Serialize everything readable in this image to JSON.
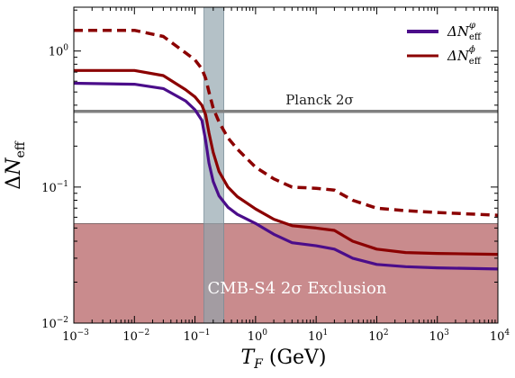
{
  "chart_data": {
    "type": "line",
    "xscale": "log",
    "yscale": "log",
    "xlim": [
      0.001,
      10000
    ],
    "ylim": [
      0.01,
      2.1
    ],
    "xlabel": {
      "main": "T",
      "sub": "F",
      "unit": " (GeV)"
    },
    "ylabel": {
      "prefix": "Δ",
      "main": "N",
      "sub": "eff"
    },
    "x_ticks": [
      {
        "value": 0.001,
        "base": "10",
        "exp": "−3"
      },
      {
        "value": 0.01,
        "base": "10",
        "exp": "−2"
      },
      {
        "value": 0.1,
        "base": "10",
        "exp": "−1"
      },
      {
        "value": 1,
        "base": "10",
        "exp": "0"
      },
      {
        "value": 10,
        "base": "10",
        "exp": "1"
      },
      {
        "value": 100,
        "base": "10",
        "exp": "2"
      },
      {
        "value": 1000,
        "base": "10",
        "exp": "3"
      },
      {
        "value": 10000,
        "base": "10",
        "exp": "4"
      }
    ],
    "y_ticks": [
      {
        "value": 0.01,
        "base": "10",
        "exp": "−2"
      },
      {
        "value": 0.1,
        "base": "10",
        "exp": "−1"
      },
      {
        "value": 1,
        "base": "10",
        "exp": "0"
      }
    ],
    "series": [
      {
        "name": "ΔN_eff^φ (purple)",
        "legend": {
          "main": "ΔN",
          "sub": "eff",
          "sup": "φ"
        },
        "color": "#4b0d8a",
        "dash": "solid",
        "points": [
          [
            0.001,
            0.58
          ],
          [
            0.01,
            0.57
          ],
          [
            0.03,
            0.53
          ],
          [
            0.07,
            0.43
          ],
          [
            0.1,
            0.37
          ],
          [
            0.13,
            0.31
          ],
          [
            0.15,
            0.22
          ],
          [
            0.17,
            0.15
          ],
          [
            0.2,
            0.11
          ],
          [
            0.25,
            0.086
          ],
          [
            0.35,
            0.071
          ],
          [
            0.5,
            0.063
          ],
          [
            1,
            0.054
          ],
          [
            2,
            0.045
          ],
          [
            4,
            0.039
          ],
          [
            10,
            0.037
          ],
          [
            20,
            0.035
          ],
          [
            40,
            0.03
          ],
          [
            100,
            0.027
          ],
          [
            300,
            0.026
          ],
          [
            1000,
            0.0255
          ],
          [
            10000,
            0.025
          ]
        ]
      },
      {
        "name": "ΔN_eff^ϕ (red solid)",
        "legend": {
          "main": "ΔN",
          "sub": "eff",
          "sup": "ϕ"
        },
        "color": "#8b0000",
        "dash": "solid",
        "points": [
          [
            0.001,
            0.72
          ],
          [
            0.01,
            0.72
          ],
          [
            0.03,
            0.66
          ],
          [
            0.07,
            0.52
          ],
          [
            0.1,
            0.46
          ],
          [
            0.13,
            0.4
          ],
          [
            0.15,
            0.34
          ],
          [
            0.17,
            0.25
          ],
          [
            0.2,
            0.18
          ],
          [
            0.25,
            0.13
          ],
          [
            0.35,
            0.1
          ],
          [
            0.5,
            0.085
          ],
          [
            1,
            0.069
          ],
          [
            2,
            0.058
          ],
          [
            4,
            0.052
          ],
          [
            10,
            0.05
          ],
          [
            20,
            0.048
          ],
          [
            40,
            0.04
          ],
          [
            100,
            0.035
          ],
          [
            300,
            0.033
          ],
          [
            1000,
            0.0325
          ],
          [
            10000,
            0.032
          ]
        ]
      },
      {
        "name": "dashed (red)",
        "color": "#8b0000",
        "dash": "dashed",
        "points": [
          [
            0.001,
            1.42
          ],
          [
            0.01,
            1.42
          ],
          [
            0.03,
            1.28
          ],
          [
            0.07,
            0.97
          ],
          [
            0.1,
            0.86
          ],
          [
            0.13,
            0.74
          ],
          [
            0.15,
            0.63
          ],
          [
            0.17,
            0.5
          ],
          [
            0.2,
            0.38
          ],
          [
            0.25,
            0.3
          ],
          [
            0.35,
            0.23
          ],
          [
            0.5,
            0.19
          ],
          [
            1,
            0.14
          ],
          [
            2,
            0.115
          ],
          [
            4,
            0.1
          ],
          [
            10,
            0.098
          ],
          [
            20,
            0.095
          ],
          [
            40,
            0.08
          ],
          [
            100,
            0.07
          ],
          [
            300,
            0.067
          ],
          [
            1000,
            0.065
          ],
          [
            10000,
            0.062
          ]
        ]
      }
    ],
    "planck": {
      "label": "Planck 2σ",
      "value": 0.36,
      "color": "#808080"
    },
    "cmb_s4": {
      "label": "CMB-S4 2σ  Exclusion",
      "ymax": 0.054,
      "color": "#c98b8d"
    },
    "tf_band": {
      "xmin": 0.14,
      "xmax": 0.3,
      "color": "#91a3ad"
    }
  }
}
